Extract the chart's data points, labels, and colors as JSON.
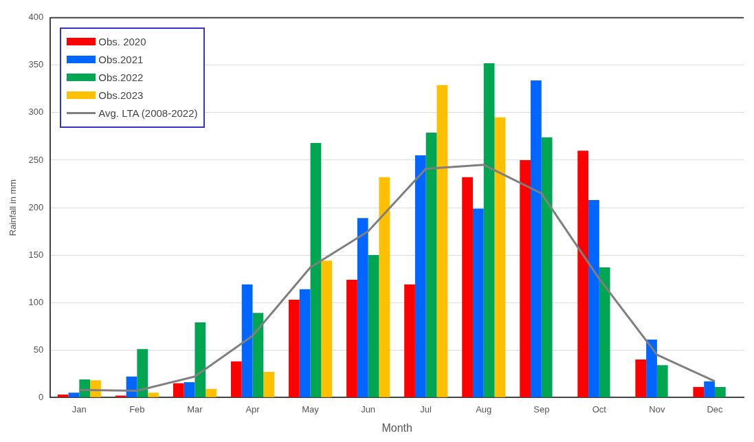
{
  "chart_data": {
    "type": "bar",
    "xlabel": "Month",
    "ylabel": "Rainfall in mm",
    "categories": [
      "Jan",
      "Feb",
      "Mar",
      "Apr",
      "May",
      "Jun",
      "Jul",
      "Aug",
      "Sep",
      "Oct",
      "Nov",
      "Dec"
    ],
    "series": [
      {
        "name": "Obs. 2020",
        "color": "#ff0000",
        "values": [
          3,
          2,
          15,
          38,
          103,
          124,
          119,
          232,
          250,
          260,
          40,
          11
        ]
      },
      {
        "name": "Obs.2021",
        "color": "#0066ff",
        "values": [
          5,
          22,
          16,
          119,
          114,
          189,
          255,
          199,
          334,
          208,
          61,
          17
        ]
      },
      {
        "name": "Obs.2022",
        "color": "#00a651",
        "values": [
          19,
          51,
          79,
          89,
          268,
          150,
          279,
          352,
          274,
          137,
          34,
          11
        ]
      },
      {
        "name": "Obs.2023",
        "color": "#ffc000",
        "values": [
          18,
          5,
          9,
          27,
          144,
          232,
          329,
          295,
          null,
          null,
          null,
          null
        ]
      },
      {
        "name": "Avg. LTA (2008-2022)",
        "type": "line",
        "color": "#7f7f7f",
        "marker": "none",
        "values": [
          8,
          7,
          22,
          65,
          137,
          175,
          241,
          245,
          215,
          125,
          45,
          17
        ]
      }
    ],
    "ylim": [
      0,
      400
    ],
    "yticks": [
      0,
      50,
      100,
      150,
      200,
      250,
      300,
      350,
      400
    ],
    "grid": "y",
    "legend": "top left"
  }
}
